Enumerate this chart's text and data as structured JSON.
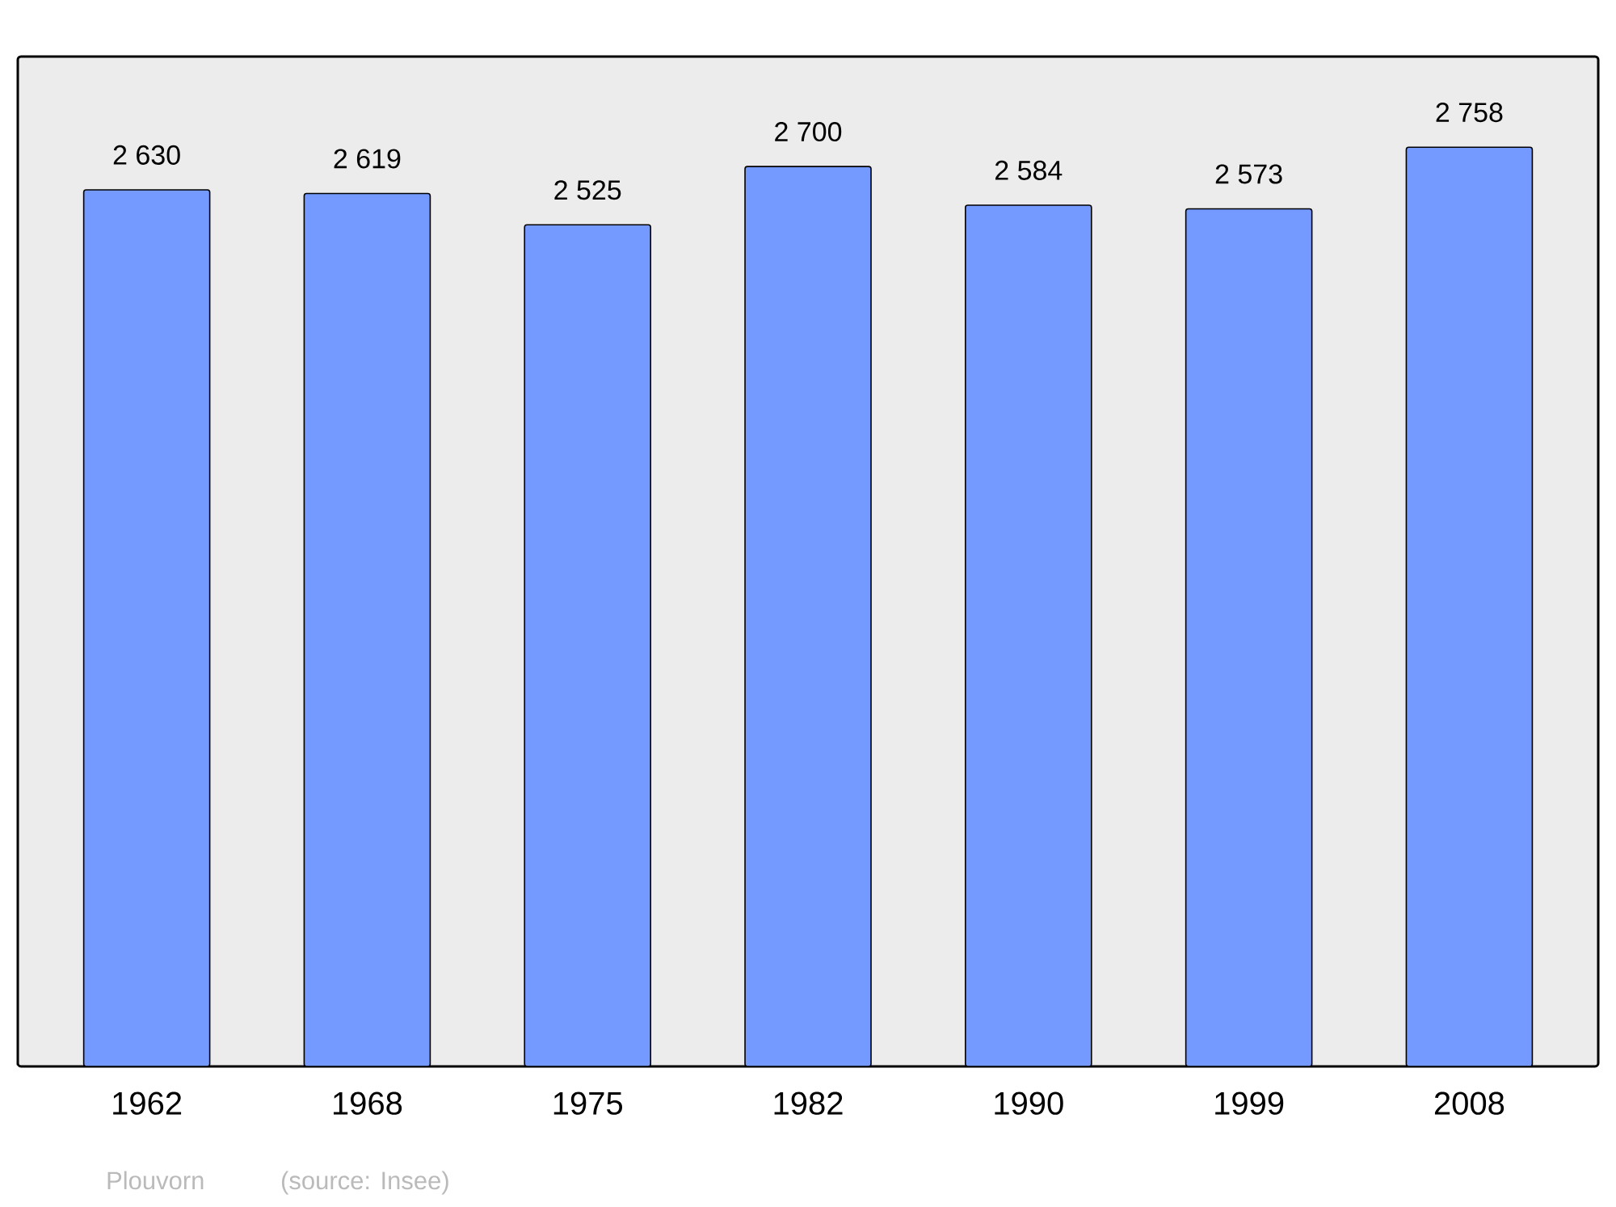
{
  "chart_data": {
    "type": "bar",
    "categories": [
      "1962",
      "1968",
      "1975",
      "1982",
      "1990",
      "1999",
      "2008"
    ],
    "values": [
      2630,
      2619,
      2525,
      2700,
      2584,
      2573,
      2758
    ],
    "value_labels": [
      "2 630",
      "2 619",
      "2 525",
      "2 700",
      "2 584",
      "2 573",
      "2 758"
    ],
    "color": "#7499ff",
    "ylim": [
      0,
      3030
    ],
    "tick_labels": "x",
    "annotations": [
      "Plouvorn",
      "(source: Insee)"
    ]
  }
}
